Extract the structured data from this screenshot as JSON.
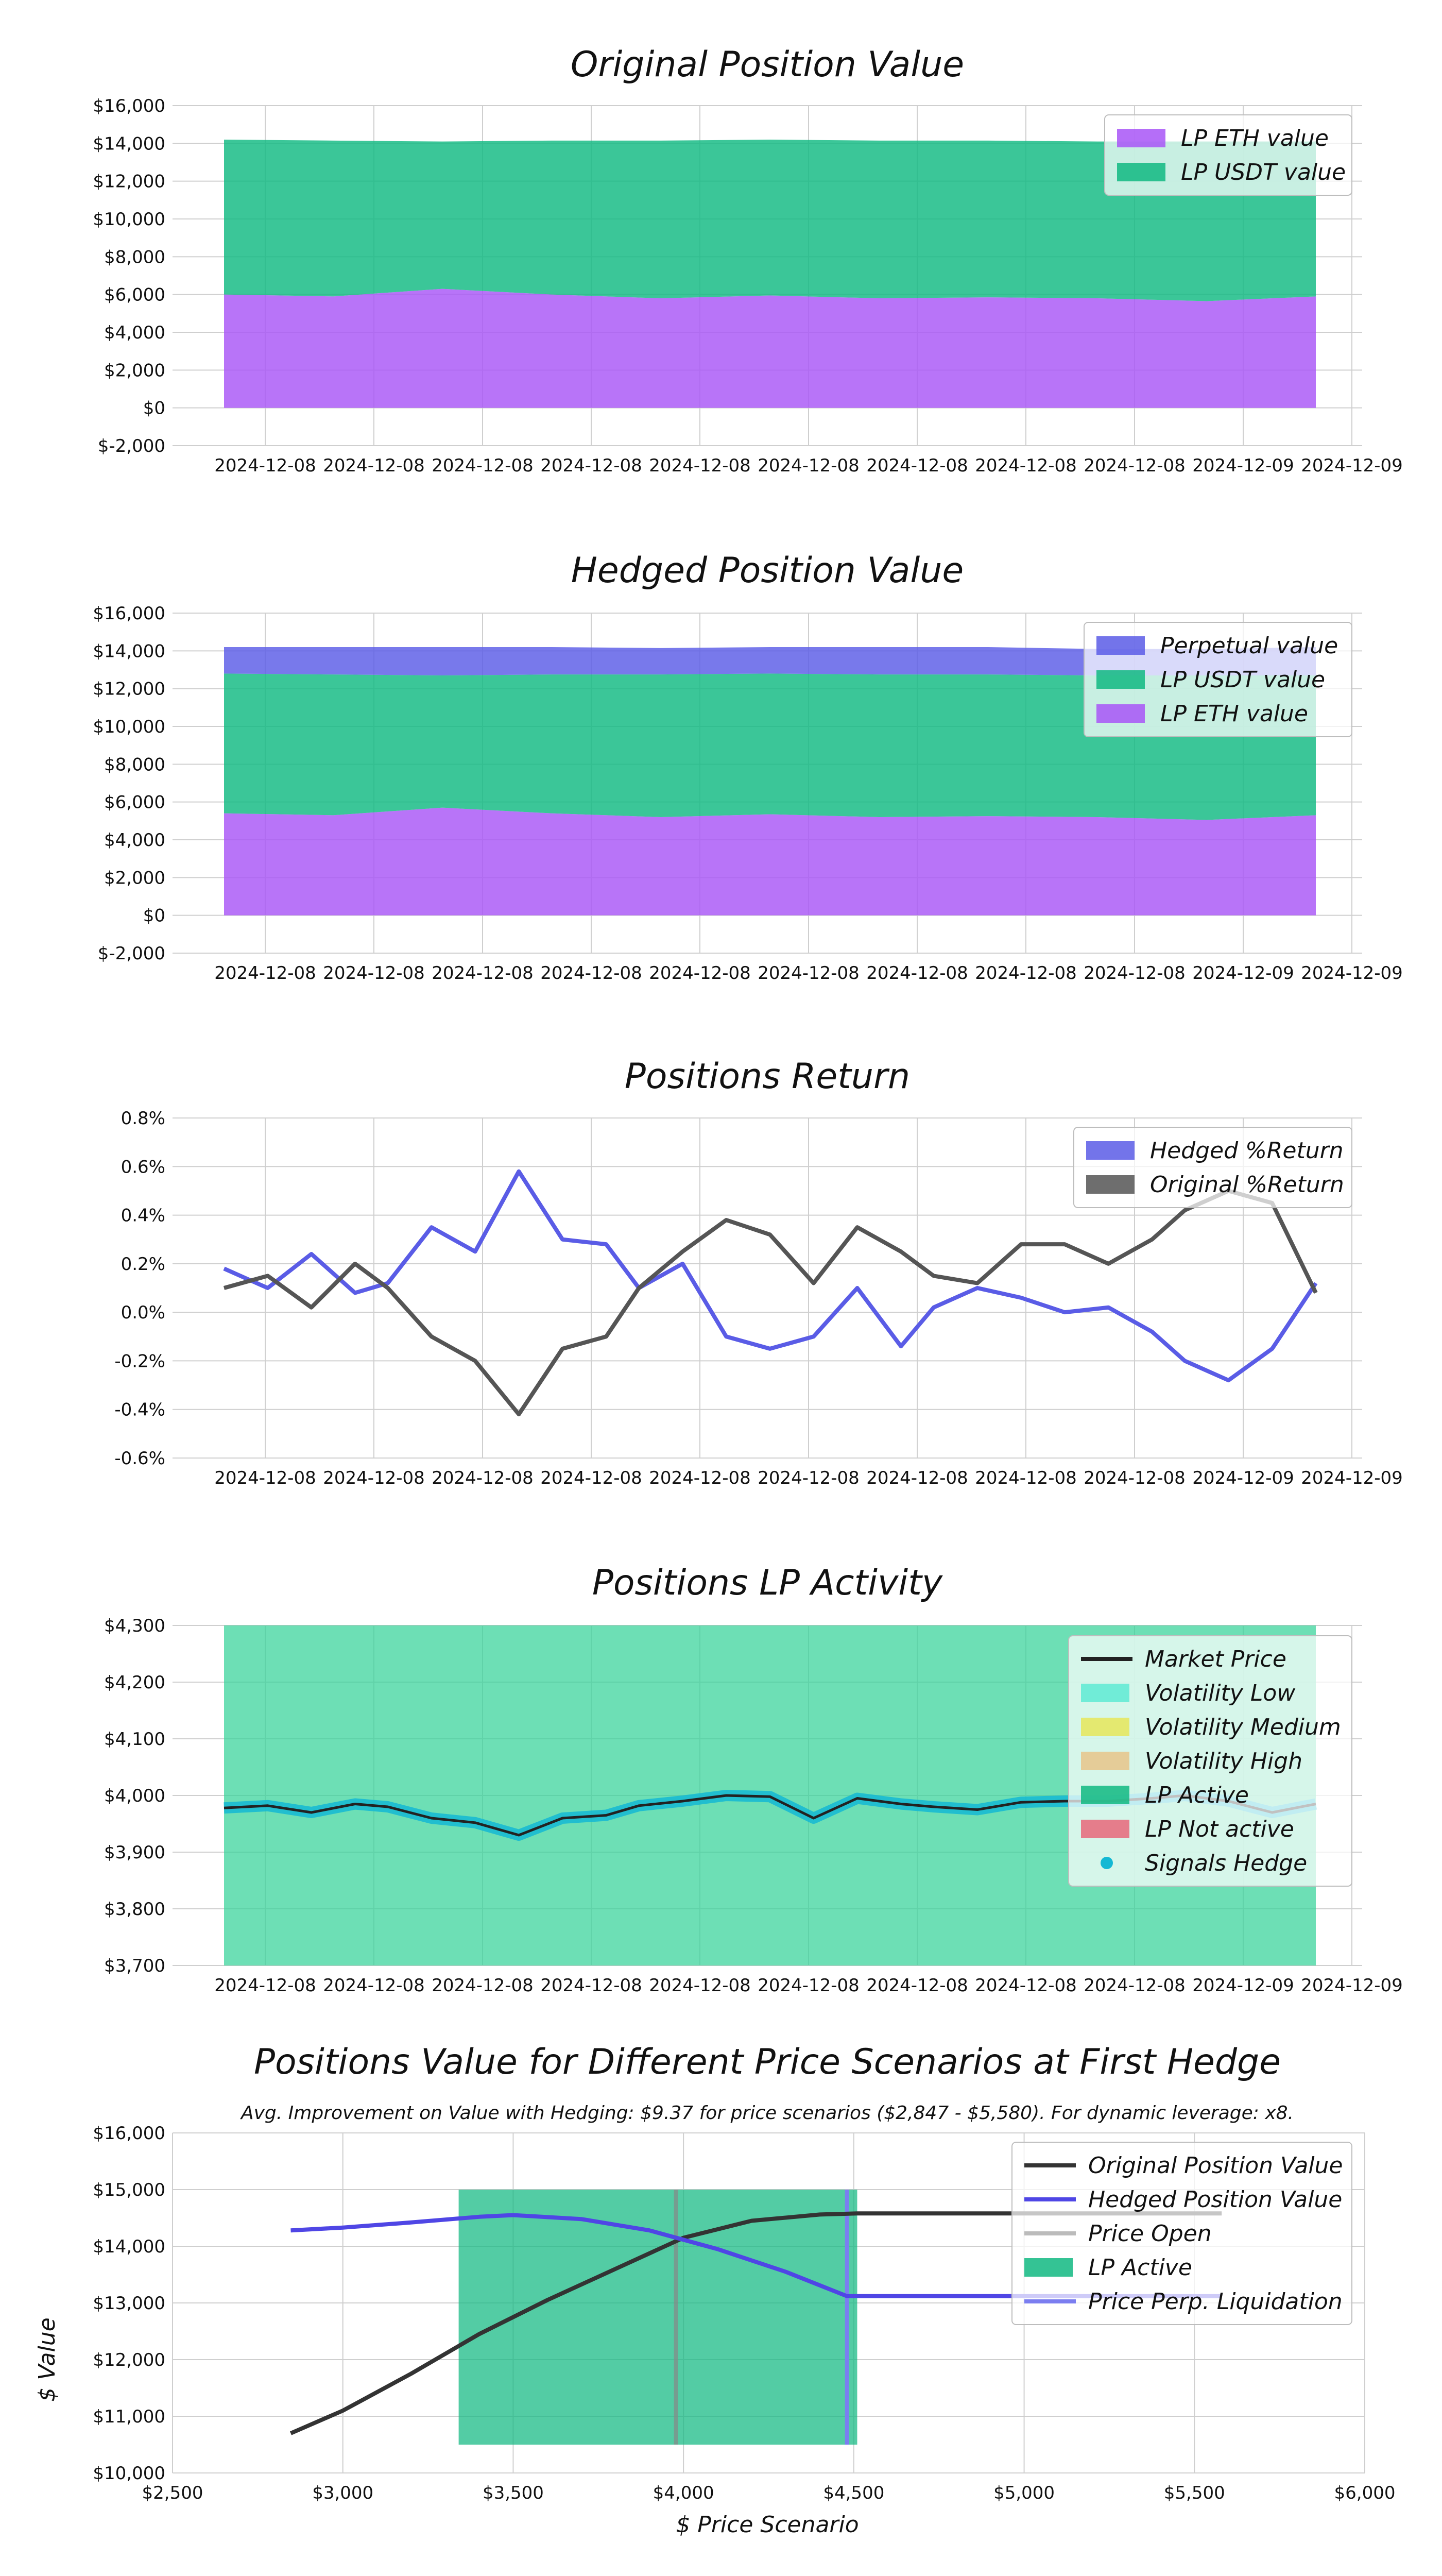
{
  "chart_data": [
    {
      "id": "original",
      "type": "area",
      "title": "Original Position Value",
      "x_tick_labels": [
        "2024-12-08",
        "2024-12-08",
        "2024-12-08",
        "2024-12-08",
        "2024-12-08",
        "2024-12-08",
        "2024-12-08",
        "2024-12-08",
        "2024-12-08",
        "2024-12-09",
        "2024-12-09"
      ],
      "y_tick_labels": [
        "$-2,000",
        "$0",
        "$2,000",
        "$4,000",
        "$6,000",
        "$8,000",
        "$10,000",
        "$12,000",
        "$14,000",
        "$16,000"
      ],
      "ylim": [
        -2000,
        16000
      ],
      "stacked": true,
      "grid": true,
      "legend_position": "top-right",
      "legend": [
        {
          "label": "LP ETH value",
          "color": "#a855f7"
        },
        {
          "label": "LP USDT value",
          "color": "#10b981"
        }
      ],
      "x_relative": [
        0,
        0.1,
        0.2,
        0.3,
        0.4,
        0.5,
        0.6,
        0.7,
        0.8,
        0.9,
        1.0
      ],
      "series": [
        {
          "name": "LP ETH value",
          "values": [
            6000,
            5900,
            6300,
            6000,
            5800,
            5950,
            5800,
            5850,
            5800,
            5650,
            5900
          ]
        },
        {
          "name": "LP USDT value",
          "values": [
            8200,
            8250,
            7800,
            8150,
            8350,
            8250,
            8350,
            8300,
            8300,
            8450,
            8200
          ]
        }
      ]
    },
    {
      "id": "hedged",
      "type": "area",
      "title": "Hedged Position Value",
      "x_tick_labels": [
        "2024-12-08",
        "2024-12-08",
        "2024-12-08",
        "2024-12-08",
        "2024-12-08",
        "2024-12-08",
        "2024-12-08",
        "2024-12-08",
        "2024-12-08",
        "2024-12-09",
        "2024-12-09"
      ],
      "y_tick_labels": [
        "$-2,000",
        "$0",
        "$2,000",
        "$4,000",
        "$6,000",
        "$8,000",
        "$10,000",
        "$12,000",
        "$14,000",
        "$16,000"
      ],
      "ylim": [
        -2000,
        16000
      ],
      "stacked": true,
      "grid": true,
      "legend_position": "top-right",
      "legend": [
        {
          "label": "Perpetual value",
          "color": "#5a5ce6"
        },
        {
          "label": "LP USDT value",
          "color": "#10b981"
        },
        {
          "label": "LP ETH value",
          "color": "#a855f7"
        }
      ],
      "x_relative": [
        0,
        0.1,
        0.2,
        0.3,
        0.4,
        0.5,
        0.6,
        0.7,
        0.8,
        0.9,
        1.0
      ],
      "series": [
        {
          "name": "LP ETH value",
          "values": [
            5400,
            5300,
            5700,
            5400,
            5200,
            5350,
            5200,
            5250,
            5200,
            5050,
            5300
          ]
        },
        {
          "name": "LP USDT value",
          "values": [
            7400,
            7450,
            7000,
            7350,
            7550,
            7450,
            7550,
            7500,
            7500,
            7650,
            7400
          ]
        },
        {
          "name": "Perpetual value",
          "values": [
            1400,
            1450,
            1500,
            1450,
            1400,
            1400,
            1450,
            1450,
            1400,
            1400,
            1500
          ]
        }
      ]
    },
    {
      "id": "returns",
      "type": "line",
      "title": "Positions Return",
      "x_tick_labels": [
        "2024-12-08",
        "2024-12-08",
        "2024-12-08",
        "2024-12-08",
        "2024-12-08",
        "2024-12-08",
        "2024-12-08",
        "2024-12-08",
        "2024-12-08",
        "2024-12-09",
        "2024-12-09"
      ],
      "y_tick_labels": [
        "-0.6%",
        "-0.4%",
        "-0.2%",
        "0.0%",
        "0.2%",
        "0.4%",
        "0.6%",
        "0.8%"
      ],
      "ylim": [
        -0.6,
        0.8
      ],
      "grid": true,
      "legend_position": "top-right",
      "legend": [
        {
          "label": "Hedged %Return",
          "color": "#5a5ce6"
        },
        {
          "label": "Original %Return",
          "color": "#555555"
        }
      ],
      "x_relative": [
        0,
        0.04,
        0.08,
        0.12,
        0.15,
        0.19,
        0.23,
        0.27,
        0.31,
        0.35,
        0.38,
        0.42,
        0.46,
        0.5,
        0.54,
        0.58,
        0.62,
        0.65,
        0.69,
        0.73,
        0.77,
        0.81,
        0.85,
        0.88,
        0.92,
        0.96,
        1.0
      ],
      "series": [
        {
          "name": "Hedged %Return",
          "values": [
            0.18,
            0.1,
            0.24,
            0.08,
            0.12,
            0.35,
            0.25,
            0.58,
            0.3,
            0.28,
            0.1,
            0.2,
            -0.1,
            -0.15,
            -0.1,
            0.1,
            -0.14,
            0.02,
            0.1,
            0.06,
            0.0,
            0.02,
            -0.08,
            -0.2,
            -0.28,
            -0.15,
            0.12
          ]
        },
        {
          "name": "Original %Return",
          "values": [
            0.1,
            0.15,
            0.02,
            0.2,
            0.1,
            -0.1,
            -0.2,
            -0.42,
            -0.15,
            -0.1,
            0.1,
            0.25,
            0.38,
            0.32,
            0.12,
            0.35,
            0.25,
            0.15,
            0.12,
            0.28,
            0.28,
            0.2,
            0.3,
            0.42,
            0.5,
            0.45,
            0.08
          ]
        }
      ]
    },
    {
      "id": "activity",
      "type": "line",
      "title": "Positions LP Activity",
      "x_tick_labels": [
        "2024-12-08",
        "2024-12-08",
        "2024-12-08",
        "2024-12-08",
        "2024-12-08",
        "2024-12-08",
        "2024-12-08",
        "2024-12-08",
        "2024-12-08",
        "2024-12-09",
        "2024-12-09"
      ],
      "y_tick_labels": [
        "$3,700",
        "$3,800",
        "$3,900",
        "$4,000",
        "$4,100",
        "$4,200",
        "$4,300"
      ],
      "ylim": [
        3700,
        4300
      ],
      "grid": true,
      "legend_position": "top-right",
      "legend": [
        {
          "label": "Market Price",
          "kind": "line",
          "color": "#222222"
        },
        {
          "label": "Volatility Low",
          "kind": "patch",
          "color": "#5eead4"
        },
        {
          "label": "Volatility Medium",
          "kind": "patch",
          "color": "#e6e65a"
        },
        {
          "label": "Volatility High",
          "kind": "patch",
          "color": "#e8c48a"
        },
        {
          "label": "LP Active",
          "kind": "patch",
          "color": "#10b981"
        },
        {
          "label": "LP Not active",
          "kind": "patch",
          "color": "#e8677a"
        },
        {
          "label": "Signals Hedge",
          "kind": "dot",
          "color": "#14b8d4"
        }
      ],
      "lp_active_range": [
        3700,
        4300
      ],
      "x_relative": [
        0,
        0.04,
        0.08,
        0.12,
        0.15,
        0.19,
        0.23,
        0.27,
        0.31,
        0.35,
        0.38,
        0.42,
        0.46,
        0.5,
        0.54,
        0.58,
        0.62,
        0.65,
        0.69,
        0.73,
        0.77,
        0.81,
        0.85,
        0.88,
        0.92,
        0.96,
        1.0
      ],
      "series": [
        {
          "name": "Market Price",
          "values": [
            3978,
            3982,
            3970,
            3985,
            3980,
            3960,
            3952,
            3930,
            3960,
            3965,
            3982,
            3990,
            4000,
            3998,
            3960,
            3995,
            3985,
            3980,
            3975,
            3988,
            3990,
            3990,
            3995,
            4000,
            3990,
            3970,
            3985
          ]
        }
      ]
    },
    {
      "id": "scenarios",
      "type": "line",
      "title": "Positions Value for Different Price Scenarios at First Hedge",
      "subtitle": "Avg. Improvement on Value with Hedging: $9.37 for price scenarios ($2,847 - $5,580). For dynamic leverage: x8.",
      "xlabel": "$ Price Scenario",
      "ylabel": "$ Value",
      "xlim": [
        2500,
        6000
      ],
      "ylim": [
        10000,
        16000
      ],
      "x_tick_labels": [
        "$2,500",
        "$3,000",
        "$3,500",
        "$4,000",
        "$4,500",
        "$5,000",
        "$5,500",
        "$6,000"
      ],
      "y_tick_labels": [
        "$10,000",
        "$11,000",
        "$12,000",
        "$13,000",
        "$14,000",
        "$15,000",
        "$16,000"
      ],
      "grid": true,
      "legend_position": "top-right",
      "legend": [
        {
          "label": "Original Position Value",
          "kind": "line",
          "color": "#333333"
        },
        {
          "label": "Hedged Position Value",
          "kind": "line",
          "color": "#4f46e5"
        },
        {
          "label": "Price Open",
          "kind": "line",
          "color": "#bbbbbb"
        },
        {
          "label": "LP Active",
          "kind": "patch",
          "color": "#10b981"
        },
        {
          "label": "Price Perp. Liquidation",
          "kind": "line",
          "color": "#7b7ef0"
        }
      ],
      "lp_active_x_range": [
        3340,
        4510
      ],
      "lp_active_y_range": [
        10500,
        15000
      ],
      "price_open": 3978,
      "price_perp_liquidation": 4480,
      "series": [
        {
          "name": "Original Position Value",
          "x": [
            2847,
            3000,
            3200,
            3400,
            3600,
            3800,
            4000,
            4200,
            4400,
            4510,
            5000,
            5580
          ],
          "values": [
            10700,
            11100,
            11750,
            12450,
            13050,
            13600,
            14150,
            14450,
            14560,
            14580,
            14580,
            14580
          ]
        },
        {
          "name": "Hedged Position Value",
          "x": [
            2847,
            3000,
            3200,
            3400,
            3500,
            3700,
            3900,
            4100,
            4300,
            4480,
            5000,
            5580
          ],
          "values": [
            14280,
            14330,
            14420,
            14520,
            14550,
            14480,
            14280,
            13950,
            13550,
            13120,
            13120,
            13120
          ]
        }
      ]
    }
  ]
}
